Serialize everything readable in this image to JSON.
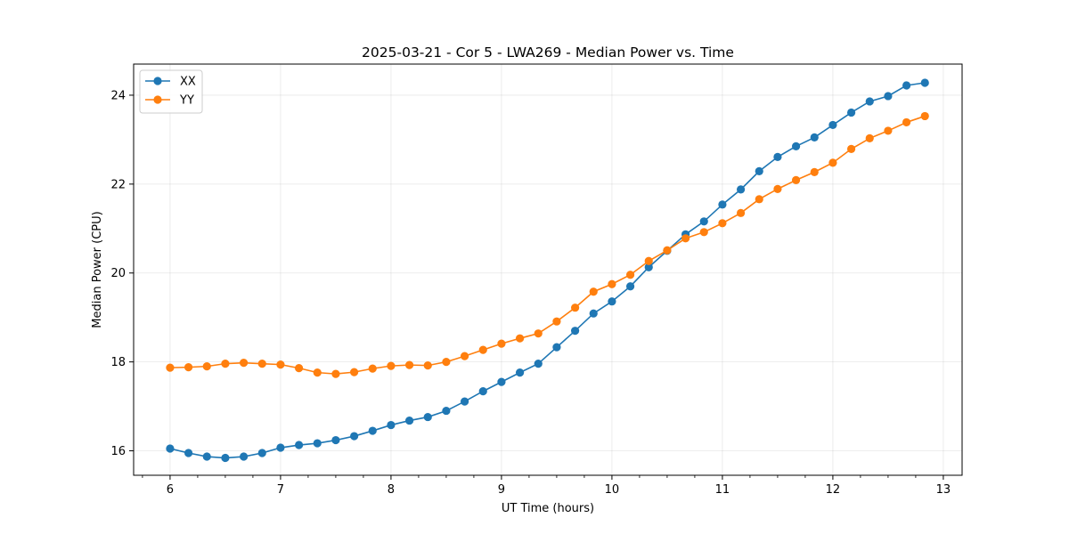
{
  "chart_data": {
    "type": "line",
    "title": "2025-03-21 - Cor 5 - LWA269 - Median Power vs. Time",
    "xlabel": "UT Time (hours)",
    "ylabel": "Median Power (CPU)",
    "xlim": [
      5.67,
      13.17
    ],
    "ylim": [
      15.45,
      24.7
    ],
    "xticks": [
      6,
      7,
      8,
      9,
      10,
      11,
      12,
      13
    ],
    "xtick_labels": [
      "6",
      "7",
      "8",
      "9",
      "10",
      "11",
      "12",
      "13"
    ],
    "xminor_step": 0.25,
    "yticks": [
      16,
      18,
      20,
      22,
      24
    ],
    "ytick_labels": [
      "16",
      "18",
      "20",
      "22",
      "24"
    ],
    "grid": true,
    "legend_position": "upper-left",
    "x": [
      6.0,
      6.1667,
      6.3333,
      6.5,
      6.6667,
      6.8333,
      7.0,
      7.1667,
      7.3333,
      7.5,
      7.6667,
      7.8333,
      8.0,
      8.1667,
      8.3333,
      8.5,
      8.6667,
      8.8333,
      9.0,
      9.1667,
      9.3333,
      9.5,
      9.6667,
      9.8333,
      10.0,
      10.1667,
      10.3333,
      10.5,
      10.6667,
      10.8333,
      11.0,
      11.1667,
      11.3333,
      11.5,
      11.6667,
      11.8333,
      12.0,
      12.1667,
      12.3333,
      12.5,
      12.6667,
      12.8333
    ],
    "series": [
      {
        "name": "XX",
        "color": "#1f77b4",
        "values": [
          16.05,
          15.95,
          15.87,
          15.84,
          15.87,
          15.95,
          16.07,
          16.13,
          16.17,
          16.24,
          16.33,
          16.45,
          16.58,
          16.68,
          16.76,
          16.9,
          17.11,
          17.34,
          17.55,
          17.76,
          17.96,
          18.33,
          18.7,
          19.09,
          19.36,
          19.7,
          20.13,
          20.5,
          20.87,
          21.16,
          21.54,
          21.88,
          22.29,
          22.61,
          22.85,
          23.05,
          23.33,
          23.61,
          23.86,
          23.98,
          24.22,
          24.28
        ]
      },
      {
        "name": "YY",
        "color": "#ff7f0e",
        "values": [
          17.87,
          17.88,
          17.9,
          17.96,
          17.98,
          17.96,
          17.94,
          17.86,
          17.76,
          17.73,
          17.77,
          17.85,
          17.91,
          17.93,
          17.92,
          18.0,
          18.13,
          18.27,
          18.41,
          18.53,
          18.64,
          18.91,
          19.22,
          19.58,
          19.75,
          19.96,
          20.27,
          20.51,
          20.78,
          20.92,
          21.12,
          21.35,
          21.66,
          21.89,
          22.09,
          22.27,
          22.48,
          22.79,
          23.03,
          23.2,
          23.39,
          23.53
        ]
      }
    ]
  }
}
